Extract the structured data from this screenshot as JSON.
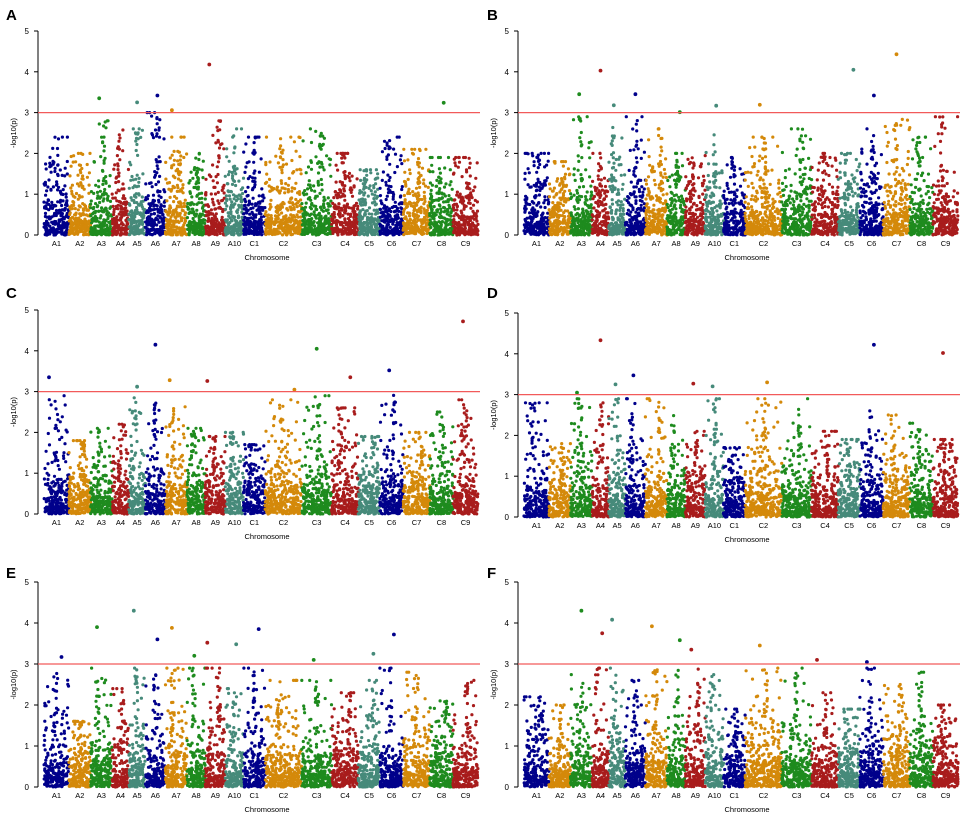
{
  "figure": {
    "description_label": "Manhattan plots A–F"
  },
  "colors": {
    "threshold": "#f25a5a",
    "chromosome_palette": [
      "#00008b",
      "#d4890a",
      "#1e8b1e",
      "#468a7a",
      "#a81c1c"
    ]
  },
  "chart_data": [
    {
      "type": "scatter",
      "panel": "A",
      "xlabel": "Chromosome",
      "ylabel": "-log10(p)",
      "ylim": [
        0,
        5
      ],
      "yticks": [
        0,
        1,
        2,
        3,
        4,
        5
      ],
      "threshold": 3,
      "chromosomes": [
        "A1",
        "A2",
        "A3",
        "A4",
        "A5",
        "A6",
        "A7",
        "A8",
        "A9",
        "A10",
        "C1",
        "C2",
        "C3",
        "C4",
        "C5",
        "C6",
        "C7",
        "C8",
        "C9"
      ],
      "chromosome_colors": [
        "#00008b",
        "#d4890a",
        "#1e8b1e",
        "#a81c1c",
        "#468a7a",
        "#00008b",
        "#d4890a",
        "#1e8b1e",
        "#a81c1c",
        "#468a7a",
        "#00008b",
        "#d4890a",
        "#1e8b1e",
        "#a81c1c",
        "#468a7a",
        "#00008b",
        "#d4890a",
        "#1e8b1e",
        "#a81c1c"
      ],
      "chromosome_peaks": [
        2.4,
        2.0,
        2.8,
        2.7,
        2.6,
        3.0,
        2.4,
        2.0,
        2.8,
        2.6,
        2.4,
        2.4,
        2.6,
        2.0,
        1.6,
        2.4,
        2.1,
        1.9,
        1.9
      ],
      "significant_points": [
        {
          "chr": "A3",
          "pos": 0.4,
          "value": 3.35
        },
        {
          "chr": "A5",
          "pos": 0.5,
          "value": 3.25
        },
        {
          "chr": "A6",
          "pos": 0.6,
          "value": 3.42
        },
        {
          "chr": "A7",
          "pos": 0.3,
          "value": 3.06
        },
        {
          "chr": "A9",
          "pos": 0.2,
          "value": 4.18
        },
        {
          "chr": "C8",
          "pos": 0.6,
          "value": 3.24
        }
      ]
    },
    {
      "type": "scatter",
      "panel": "B",
      "xlabel": "Chromosome",
      "ylabel": "-log10(p)",
      "ylim": [
        0,
        5
      ],
      "yticks": [
        0,
        1,
        2,
        3,
        4,
        5
      ],
      "threshold": 3,
      "chromosomes": [
        "A1",
        "A2",
        "A3",
        "A4",
        "A5",
        "A6",
        "A7",
        "A8",
        "A9",
        "A10",
        "C1",
        "C2",
        "C3",
        "C4",
        "C5",
        "C6",
        "C7",
        "C8",
        "C9"
      ],
      "chromosome_colors": [
        "#00008b",
        "#d4890a",
        "#1e8b1e",
        "#a81c1c",
        "#468a7a",
        "#00008b",
        "#d4890a",
        "#1e8b1e",
        "#a81c1c",
        "#468a7a",
        "#00008b",
        "#d4890a",
        "#1e8b1e",
        "#a81c1c",
        "#468a7a",
        "#00008b",
        "#d4890a",
        "#1e8b1e",
        "#a81c1c"
      ],
      "chromosome_peaks": [
        2.0,
        1.8,
        2.9,
        2.0,
        2.7,
        2.9,
        2.6,
        2.0,
        2.0,
        2.5,
        1.9,
        2.4,
        2.6,
        2.0,
        2.0,
        2.6,
        2.9,
        2.4,
        2.9
      ],
      "significant_points": [
        {
          "chr": "A3",
          "pos": 0.4,
          "value": 3.45
        },
        {
          "chr": "A4",
          "pos": 0.5,
          "value": 4.03
        },
        {
          "chr": "A5",
          "pos": 0.3,
          "value": 3.18
        },
        {
          "chr": "A6",
          "pos": 0.5,
          "value": 3.45
        },
        {
          "chr": "A8",
          "pos": 0.7,
          "value": 3.01
        },
        {
          "chr": "A10",
          "pos": 0.6,
          "value": 3.17
        },
        {
          "chr": "C2",
          "pos": 0.4,
          "value": 3.19
        },
        {
          "chr": "C5",
          "pos": 0.7,
          "value": 4.05
        },
        {
          "chr": "C6",
          "pos": 0.6,
          "value": 3.42
        },
        {
          "chr": "C7",
          "pos": 0.5,
          "value": 4.43
        }
      ]
    },
    {
      "type": "scatter",
      "panel": "C",
      "xlabel": "Chromosome",
      "ylabel": "-log10(p)",
      "ylim": [
        0,
        5
      ],
      "yticks": [
        0,
        1,
        2,
        3,
        4,
        5
      ],
      "threshold": 3,
      "chromosomes": [
        "A1",
        "A2",
        "A3",
        "A4",
        "A5",
        "A6",
        "A7",
        "A8",
        "A9",
        "A10",
        "C1",
        "C2",
        "C3",
        "C4",
        "C5",
        "C6",
        "C7",
        "C8",
        "C9"
      ],
      "chromosome_colors": [
        "#00008b",
        "#d4890a",
        "#1e8b1e",
        "#a81c1c",
        "#468a7a",
        "#00008b",
        "#d4890a",
        "#1e8b1e",
        "#a81c1c",
        "#468a7a",
        "#00008b",
        "#d4890a",
        "#1e8b1e",
        "#a81c1c",
        "#468a7a",
        "#00008b",
        "#d4890a",
        "#1e8b1e",
        "#a81c1c"
      ],
      "chromosome_peaks": [
        2.9,
        1.8,
        2.1,
        2.2,
        2.9,
        3.0,
        2.7,
        2.1,
        1.9,
        2.0,
        1.7,
        2.8,
        2.9,
        2.6,
        1.9,
        3.0,
        2.0,
        2.5,
        2.8
      ],
      "significant_points": [
        {
          "chr": "A1",
          "pos": 0.2,
          "value": 3.35
        },
        {
          "chr": "A5",
          "pos": 0.5,
          "value": 3.12
        },
        {
          "chr": "A6",
          "pos": 0.5,
          "value": 4.15
        },
        {
          "chr": "A7",
          "pos": 0.2,
          "value": 3.28
        },
        {
          "chr": "A9",
          "pos": 0.1,
          "value": 3.26
        },
        {
          "chr": "C2",
          "pos": 0.8,
          "value": 3.05
        },
        {
          "chr": "C3",
          "pos": 0.5,
          "value": 4.05
        },
        {
          "chr": "C4",
          "pos": 0.7,
          "value": 3.35
        },
        {
          "chr": "C6",
          "pos": 0.4,
          "value": 3.52
        },
        {
          "chr": "C9",
          "pos": 0.4,
          "value": 4.72
        }
      ]
    },
    {
      "type": "scatter",
      "panel": "D",
      "xlabel": "Chromosome",
      "ylabel": "-log10(p)",
      "ylim": [
        0,
        5
      ],
      "yticks": [
        0,
        1,
        2,
        3,
        4,
        5
      ],
      "threshold": 3,
      "chromosomes": [
        "A1",
        "A2",
        "A3",
        "A4",
        "A5",
        "A6",
        "A7",
        "A8",
        "A9",
        "A10",
        "C1",
        "C2",
        "C3",
        "C4",
        "C5",
        "C6",
        "C7",
        "C8",
        "C9"
      ],
      "chromosome_colors": [
        "#00008b",
        "#d4890a",
        "#1e8b1e",
        "#a81c1c",
        "#468a7a",
        "#00008b",
        "#d4890a",
        "#1e8b1e",
        "#a81c1c",
        "#468a7a",
        "#00008b",
        "#d4890a",
        "#1e8b1e",
        "#a81c1c",
        "#468a7a",
        "#00008b",
        "#d4890a",
        "#1e8b1e",
        "#a81c1c"
      ],
      "chromosome_peaks": [
        2.8,
        1.8,
        2.9,
        2.9,
        2.9,
        2.9,
        2.9,
        2.6,
        2.1,
        2.9,
        1.7,
        2.9,
        2.9,
        2.1,
        1.9,
        2.6,
        2.5,
        2.3,
        1.9
      ],
      "significant_points": [
        {
          "chr": "A3",
          "pos": 0.3,
          "value": 3.05
        },
        {
          "chr": "A4",
          "pos": 0.5,
          "value": 4.33
        },
        {
          "chr": "A5",
          "pos": 0.4,
          "value": 3.25
        },
        {
          "chr": "A6",
          "pos": 0.4,
          "value": 3.47
        },
        {
          "chr": "A9",
          "pos": 0.4,
          "value": 3.27
        },
        {
          "chr": "A10",
          "pos": 0.4,
          "value": 3.2
        },
        {
          "chr": "C2",
          "pos": 0.6,
          "value": 3.3
        },
        {
          "chr": "C6",
          "pos": 0.6,
          "value": 4.22
        },
        {
          "chr": "C9",
          "pos": 0.4,
          "value": 4.02
        }
      ]
    },
    {
      "type": "scatter",
      "panel": "E",
      "xlabel": "Chromosome",
      "ylabel": "-log10(p)",
      "ylim": [
        0,
        5
      ],
      "yticks": [
        0,
        1,
        2,
        3,
        4,
        5
      ],
      "threshold": 3,
      "chromosomes": [
        "A1",
        "A2",
        "A3",
        "A4",
        "A5",
        "A6",
        "A7",
        "A8",
        "A9",
        "A10",
        "C1",
        "C2",
        "C3",
        "C4",
        "C5",
        "C6",
        "C7",
        "C8",
        "C9"
      ],
      "chromosome_colors": [
        "#00008b",
        "#d4890a",
        "#1e8b1e",
        "#a81c1c",
        "#468a7a",
        "#00008b",
        "#d4890a",
        "#1e8b1e",
        "#a81c1c",
        "#468a7a",
        "#00008b",
        "#d4890a",
        "#1e8b1e",
        "#a81c1c",
        "#468a7a",
        "#00008b",
        "#d4890a",
        "#1e8b1e",
        "#a81c1c"
      ],
      "chromosome_peaks": [
        2.8,
        1.6,
        2.9,
        2.4,
        2.9,
        2.9,
        2.9,
        2.9,
        2.9,
        2.4,
        2.9,
        2.6,
        2.6,
        2.3,
        2.6,
        2.9,
        2.8,
        2.1,
        2.6
      ],
      "significant_points": [
        {
          "chr": "A1",
          "pos": 0.7,
          "value": 3.17
        },
        {
          "chr": "A3",
          "pos": 0.3,
          "value": 3.9
        },
        {
          "chr": "A5",
          "pos": 0.3,
          "value": 4.3
        },
        {
          "chr": "A6",
          "pos": 0.6,
          "value": 3.6
        },
        {
          "chr": "A7",
          "pos": 0.3,
          "value": 3.88
        },
        {
          "chr": "A8",
          "pos": 0.4,
          "value": 3.2
        },
        {
          "chr": "A9",
          "pos": 0.1,
          "value": 3.52
        },
        {
          "chr": "A10",
          "pos": 0.6,
          "value": 3.48
        },
        {
          "chr": "C1",
          "pos": 0.7,
          "value": 3.85
        },
        {
          "chr": "C3",
          "pos": 0.4,
          "value": 3.1
        },
        {
          "chr": "C5",
          "pos": 0.7,
          "value": 3.25
        },
        {
          "chr": "C6",
          "pos": 0.6,
          "value": 3.72
        }
      ]
    },
    {
      "type": "scatter",
      "panel": "F",
      "xlabel": "Chromosome",
      "ylabel": "-log10(p)",
      "ylim": [
        0,
        5
      ],
      "yticks": [
        0,
        1,
        2,
        3,
        4,
        5
      ],
      "threshold": 3,
      "chromosomes": [
        "A1",
        "A2",
        "A3",
        "A4",
        "A5",
        "A6",
        "A7",
        "A8",
        "A9",
        "A10",
        "C1",
        "C2",
        "C3",
        "C4",
        "C5",
        "C6",
        "C7",
        "C8",
        "C9"
      ],
      "chromosome_colors": [
        "#00008b",
        "#d4890a",
        "#1e8b1e",
        "#a81c1c",
        "#468a7a",
        "#00008b",
        "#d4890a",
        "#1e8b1e",
        "#a81c1c",
        "#468a7a",
        "#00008b",
        "#d4890a",
        "#1e8b1e",
        "#a81c1c",
        "#468a7a",
        "#00008b",
        "#d4890a",
        "#1e8b1e",
        "#a81c1c"
      ],
      "chromosome_peaks": [
        2.2,
        2.0,
        2.9,
        2.9,
        2.9,
        2.6,
        2.9,
        2.9,
        2.9,
        2.8,
        1.9,
        2.9,
        2.9,
        2.3,
        1.9,
        2.9,
        2.5,
        2.8,
        2.0
      ],
      "significant_points": [
        {
          "chr": "A3",
          "pos": 0.5,
          "value": 4.3
        },
        {
          "chr": "A4",
          "pos": 0.6,
          "value": 3.75
        },
        {
          "chr": "A5",
          "pos": 0.2,
          "value": 4.08
        },
        {
          "chr": "A7",
          "pos": 0.3,
          "value": 3.92
        },
        {
          "chr": "A8",
          "pos": 0.7,
          "value": 3.58
        },
        {
          "chr": "A9",
          "pos": 0.3,
          "value": 3.35
        },
        {
          "chr": "C2",
          "pos": 0.4,
          "value": 3.45
        },
        {
          "chr": "C4",
          "pos": 0.2,
          "value": 3.1
        },
        {
          "chr": "C6",
          "pos": 0.3,
          "value": 3.05
        }
      ]
    }
  ]
}
